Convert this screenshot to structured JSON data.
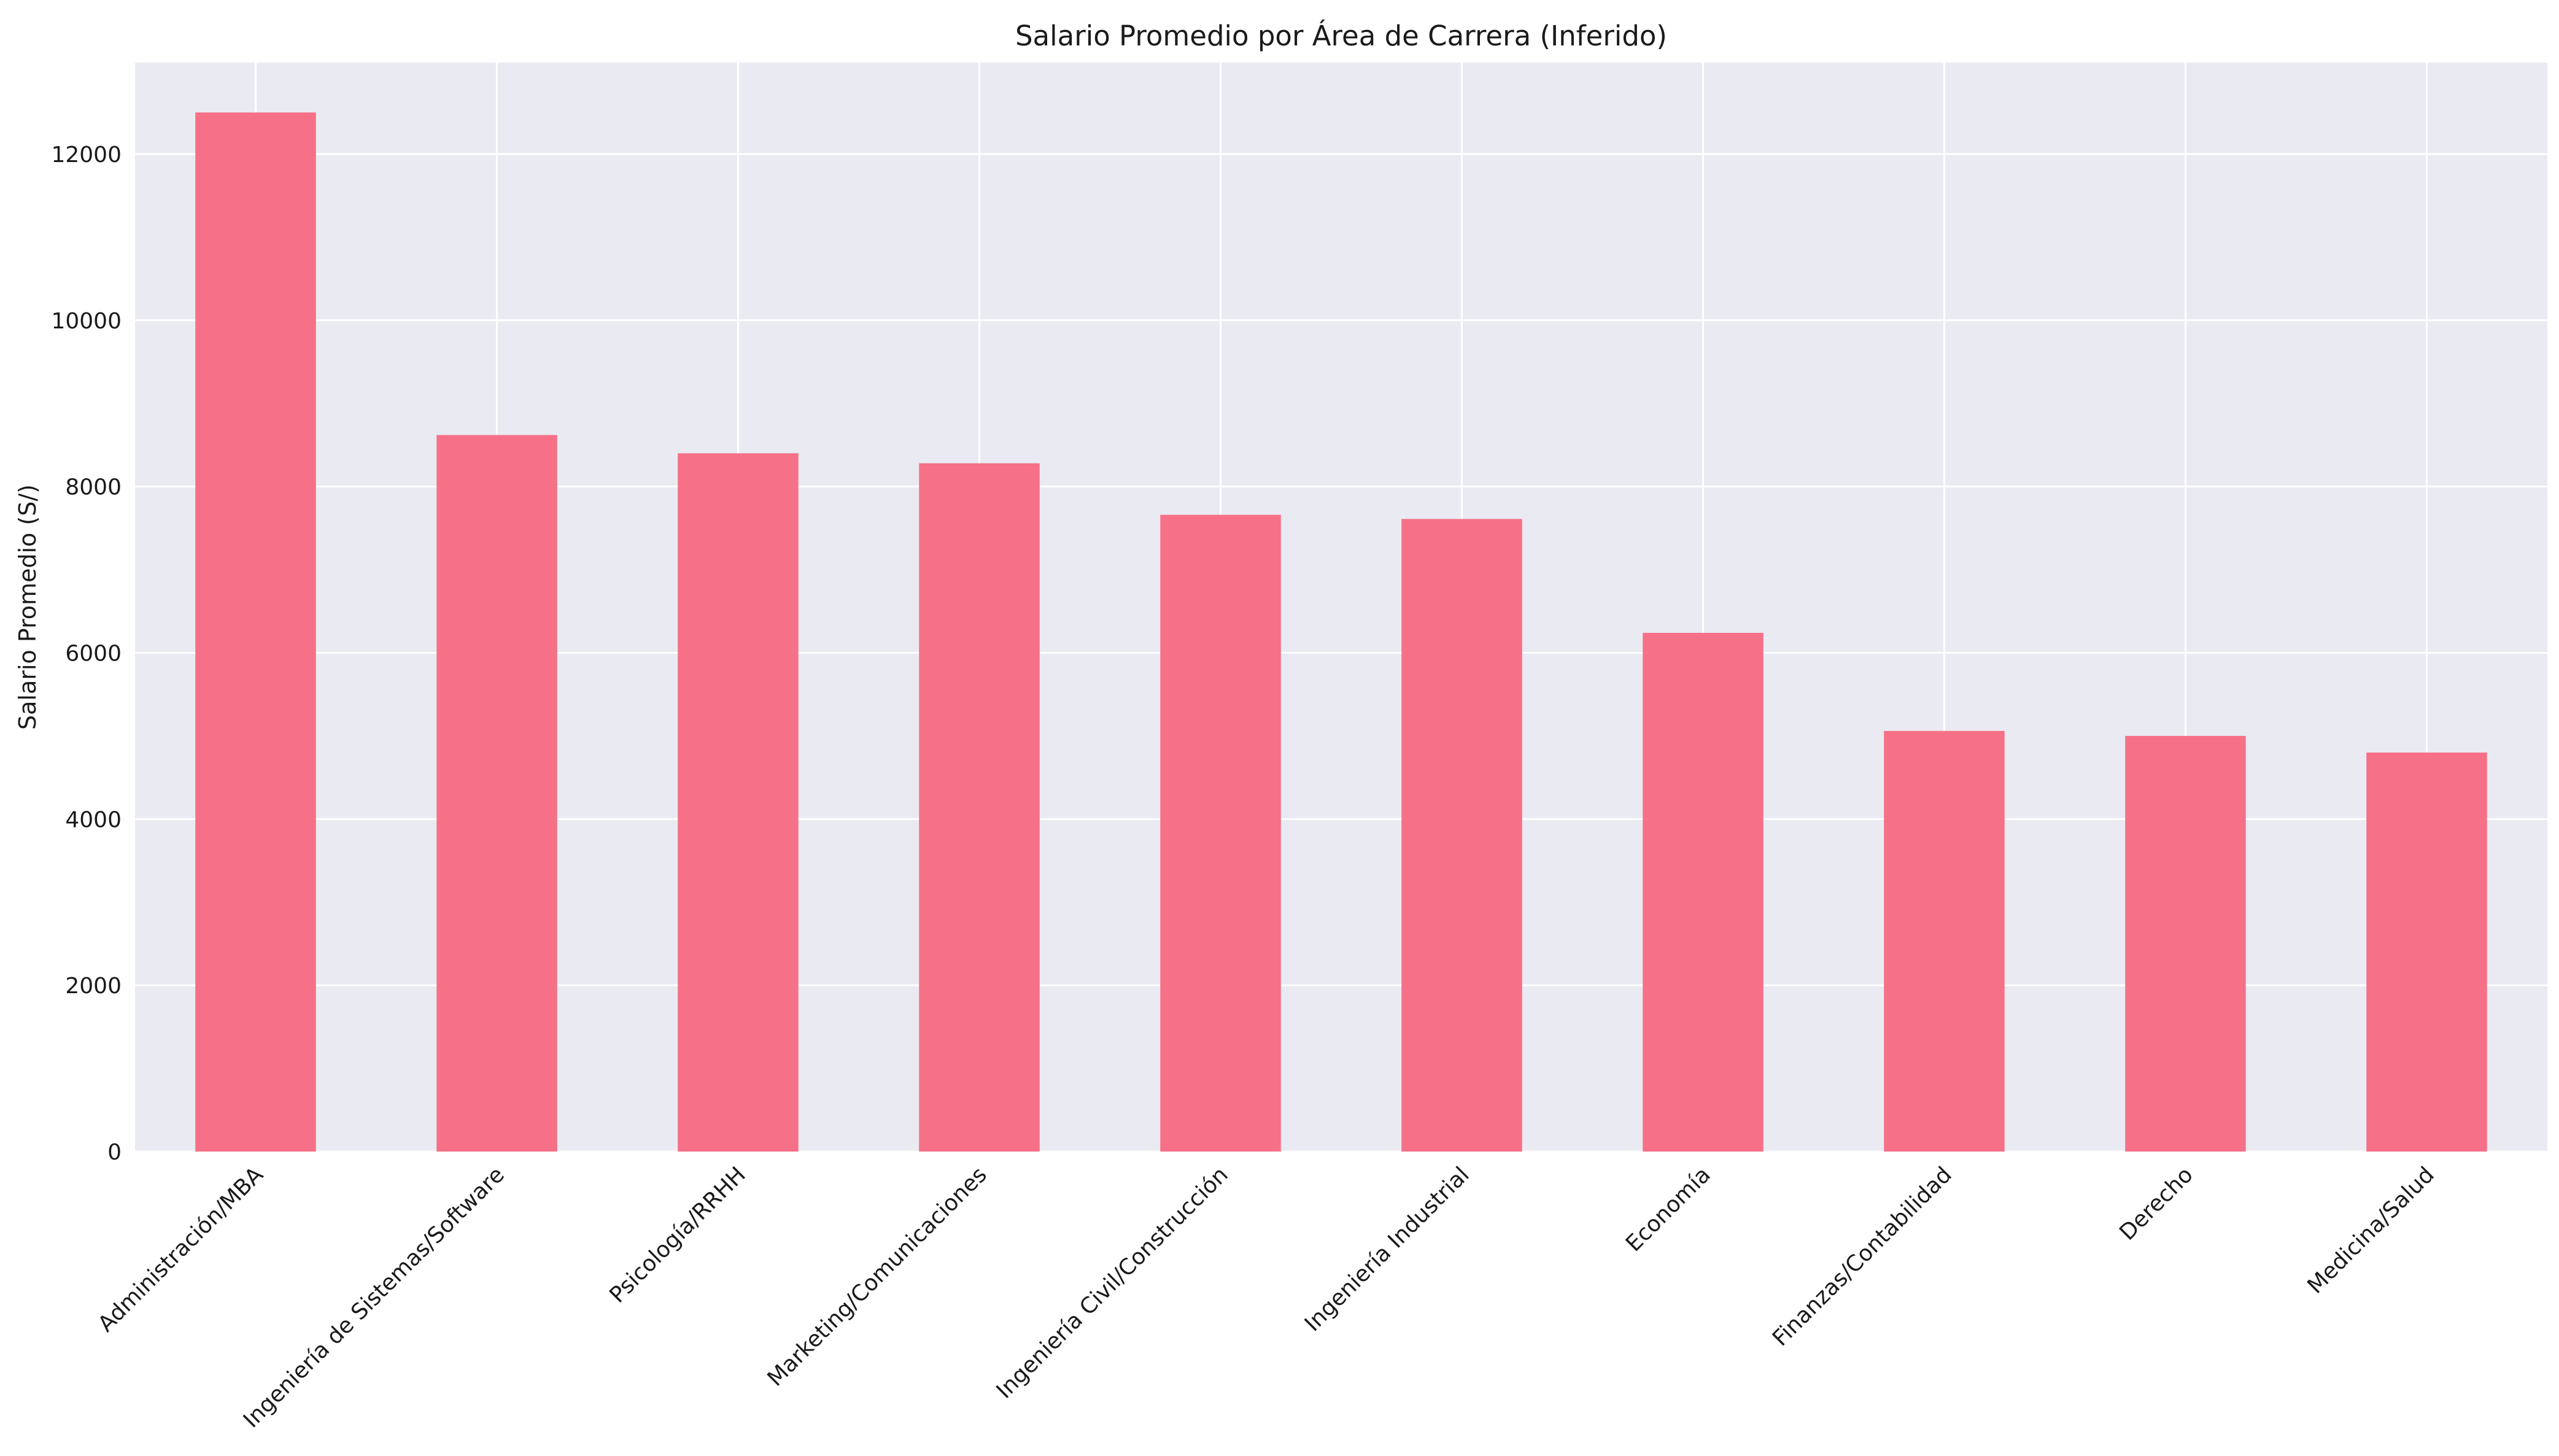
{
  "chart_data": {
    "type": "bar",
    "title": "Salario Promedio por Área de Carrera (Inferido)",
    "xlabel": "",
    "ylabel": "Salario Promedio (S/)",
    "categories": [
      "Administración/MBA",
      "Ingeniería de Sistemas/Software",
      "Psicología/RRHH",
      "Marketing/Comunicaciones",
      "Ingeniería Civil/Construcción",
      "Ingeniería Industrial",
      "Economía",
      "Finanzas/Contabilidad",
      "Derecho",
      "Medicina/Salud"
    ],
    "values": [
      12500,
      8620,
      8400,
      8280,
      7660,
      7610,
      6240,
      5060,
      5000,
      4800
    ],
    "ylim": [
      0,
      13100
    ],
    "yticks": [
      0,
      2000,
      4000,
      6000,
      8000,
      10000,
      12000
    ],
    "grid": true,
    "colors": {
      "bar": "#f67088",
      "plot_background": "#eaeaf2",
      "grid": "#ffffff"
    }
  }
}
